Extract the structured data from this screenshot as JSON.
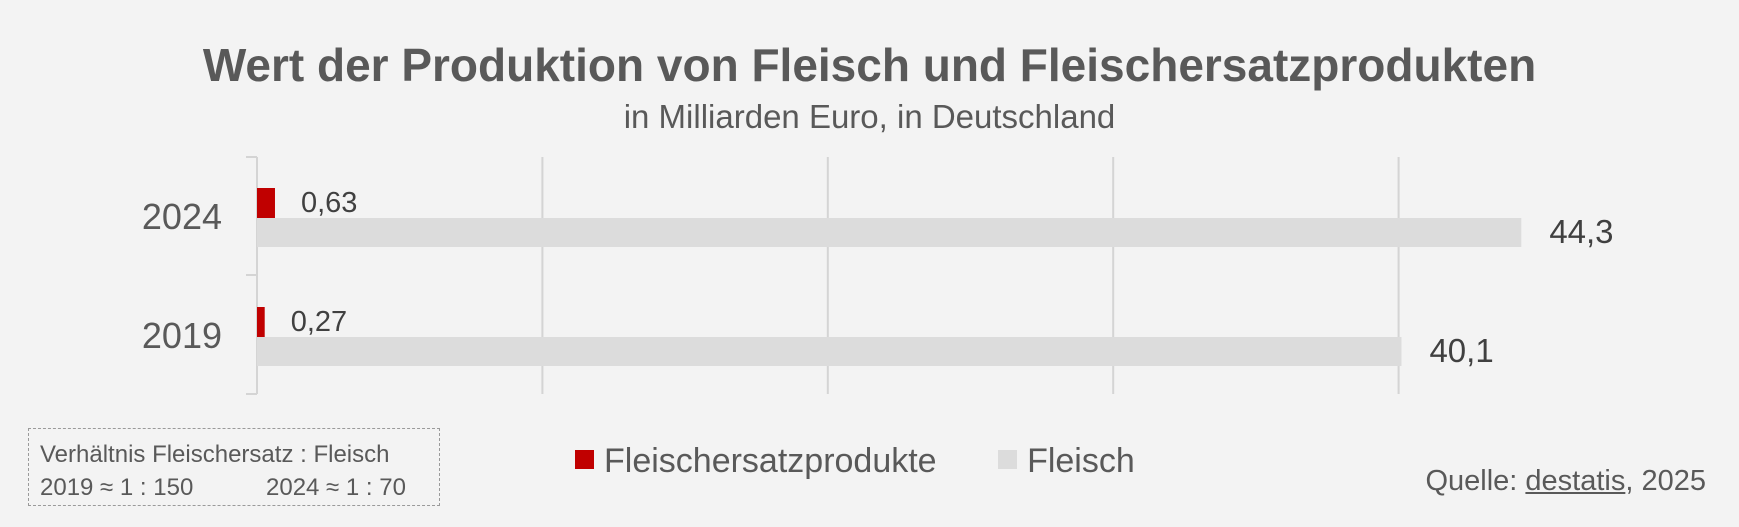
{
  "chart_data": {
    "type": "bar",
    "orientation": "horizontal",
    "title": "Wert der Produktion von Fleisch und Fleischersatzprodukten",
    "subtitle": "in Milliarden Euro, in Deutschland",
    "categories": [
      "2024",
      "2019"
    ],
    "series": [
      {
        "name": "Fleischersatzprodukte",
        "color": "#c00000",
        "values": [
          0.63,
          0.27
        ],
        "labels": [
          "0,63",
          "0,27"
        ]
      },
      {
        "name": "Fleisch",
        "color": "#dcdcdc",
        "values": [
          44.3,
          40.1
        ],
        "labels": [
          "44,3",
          "40,1"
        ]
      }
    ],
    "xlim": [
      0,
      50
    ],
    "grid": true,
    "legend_position": "bottom"
  },
  "ratio_box": {
    "title": "Verhältnis Fleischersatz : Fleisch",
    "ratio_2019": "2019 ≈ 1 : 150",
    "ratio_2024": "2024 ≈ 1 : 70"
  },
  "source": {
    "prefix": "Quelle: ",
    "link": "destatis",
    "suffix": ", 2025"
  }
}
